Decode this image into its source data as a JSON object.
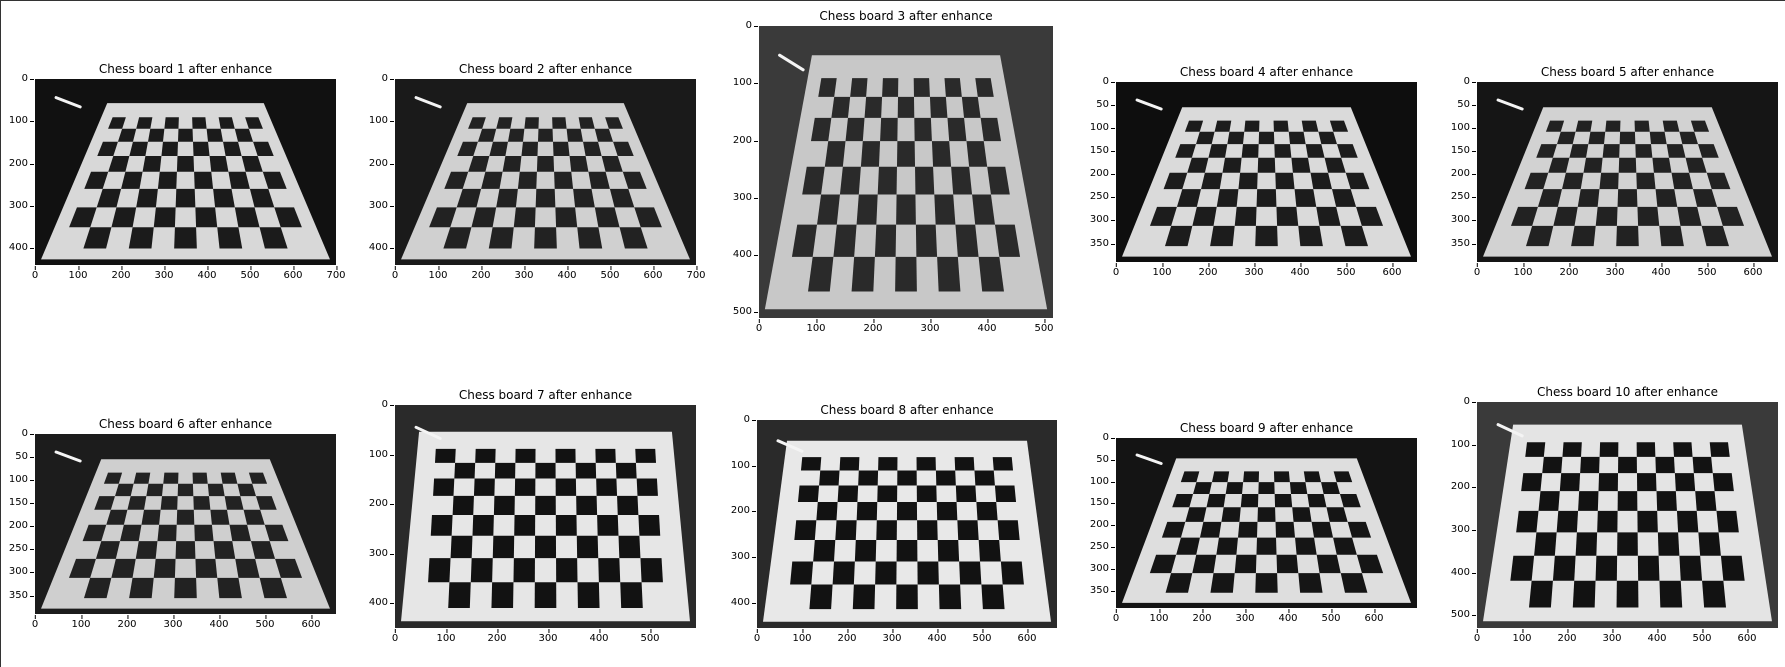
{
  "panels": [
    {
      "title": "Chess board 1 after enhance",
      "xticks": [
        "0",
        "100",
        "200",
        "300",
        "400",
        "500",
        "600",
        "700"
      ],
      "yticks": [
        "0",
        "100",
        "200",
        "300",
        "400"
      ]
    },
    {
      "title": "Chess board 2 after enhance",
      "xticks": [
        "0",
        "100",
        "200",
        "300",
        "400",
        "500",
        "600",
        "700"
      ],
      "yticks": [
        "0",
        "100",
        "200",
        "300",
        "400"
      ]
    },
    {
      "title": "Chess board 3 after enhance",
      "xticks": [
        "0",
        "100",
        "200",
        "300",
        "400",
        "500"
      ],
      "yticks": [
        "0",
        "100",
        "200",
        "300",
        "400",
        "500"
      ]
    },
    {
      "title": "Chess board 4 after enhance",
      "xticks": [
        "0",
        "100",
        "200",
        "300",
        "400",
        "500",
        "600"
      ],
      "yticks": [
        "0",
        "50",
        "100",
        "150",
        "200",
        "250",
        "300",
        "350"
      ]
    },
    {
      "title": "Chess board 5 after enhance",
      "xticks": [
        "0",
        "100",
        "200",
        "300",
        "400",
        "500",
        "600"
      ],
      "yticks": [
        "0",
        "50",
        "100",
        "150",
        "200",
        "250",
        "300",
        "350"
      ]
    },
    {
      "title": "Chess board 6 after enhance",
      "xticks": [
        "0",
        "100",
        "200",
        "300",
        "400",
        "500",
        "600"
      ],
      "yticks": [
        "0",
        "50",
        "100",
        "150",
        "200",
        "250",
        "300",
        "350"
      ]
    },
    {
      "title": "Chess board 7 after enhance",
      "xticks": [
        "0",
        "100",
        "200",
        "300",
        "400",
        "500"
      ],
      "yticks": [
        "0",
        "100",
        "200",
        "300",
        "400"
      ]
    },
    {
      "title": "Chess board 8 after enhance",
      "xticks": [
        "0",
        "100",
        "200",
        "300",
        "400",
        "500",
        "600"
      ],
      "yticks": [
        "0",
        "100",
        "200",
        "300",
        "400"
      ]
    },
    {
      "title": "Chess board 9 after enhance",
      "xticks": [
        "0",
        "100",
        "200",
        "300",
        "400",
        "500",
        "600"
      ],
      "yticks": [
        "0",
        "50",
        "100",
        "150",
        "200",
        "250",
        "300",
        "350"
      ]
    },
    {
      "title": "Chess board 10 after enhance",
      "xticks": [
        "0",
        "100",
        "200",
        "300",
        "400",
        "500",
        "600"
      ],
      "yticks": [
        "0",
        "100",
        "200",
        "300",
        "400",
        "500"
      ]
    }
  ]
}
